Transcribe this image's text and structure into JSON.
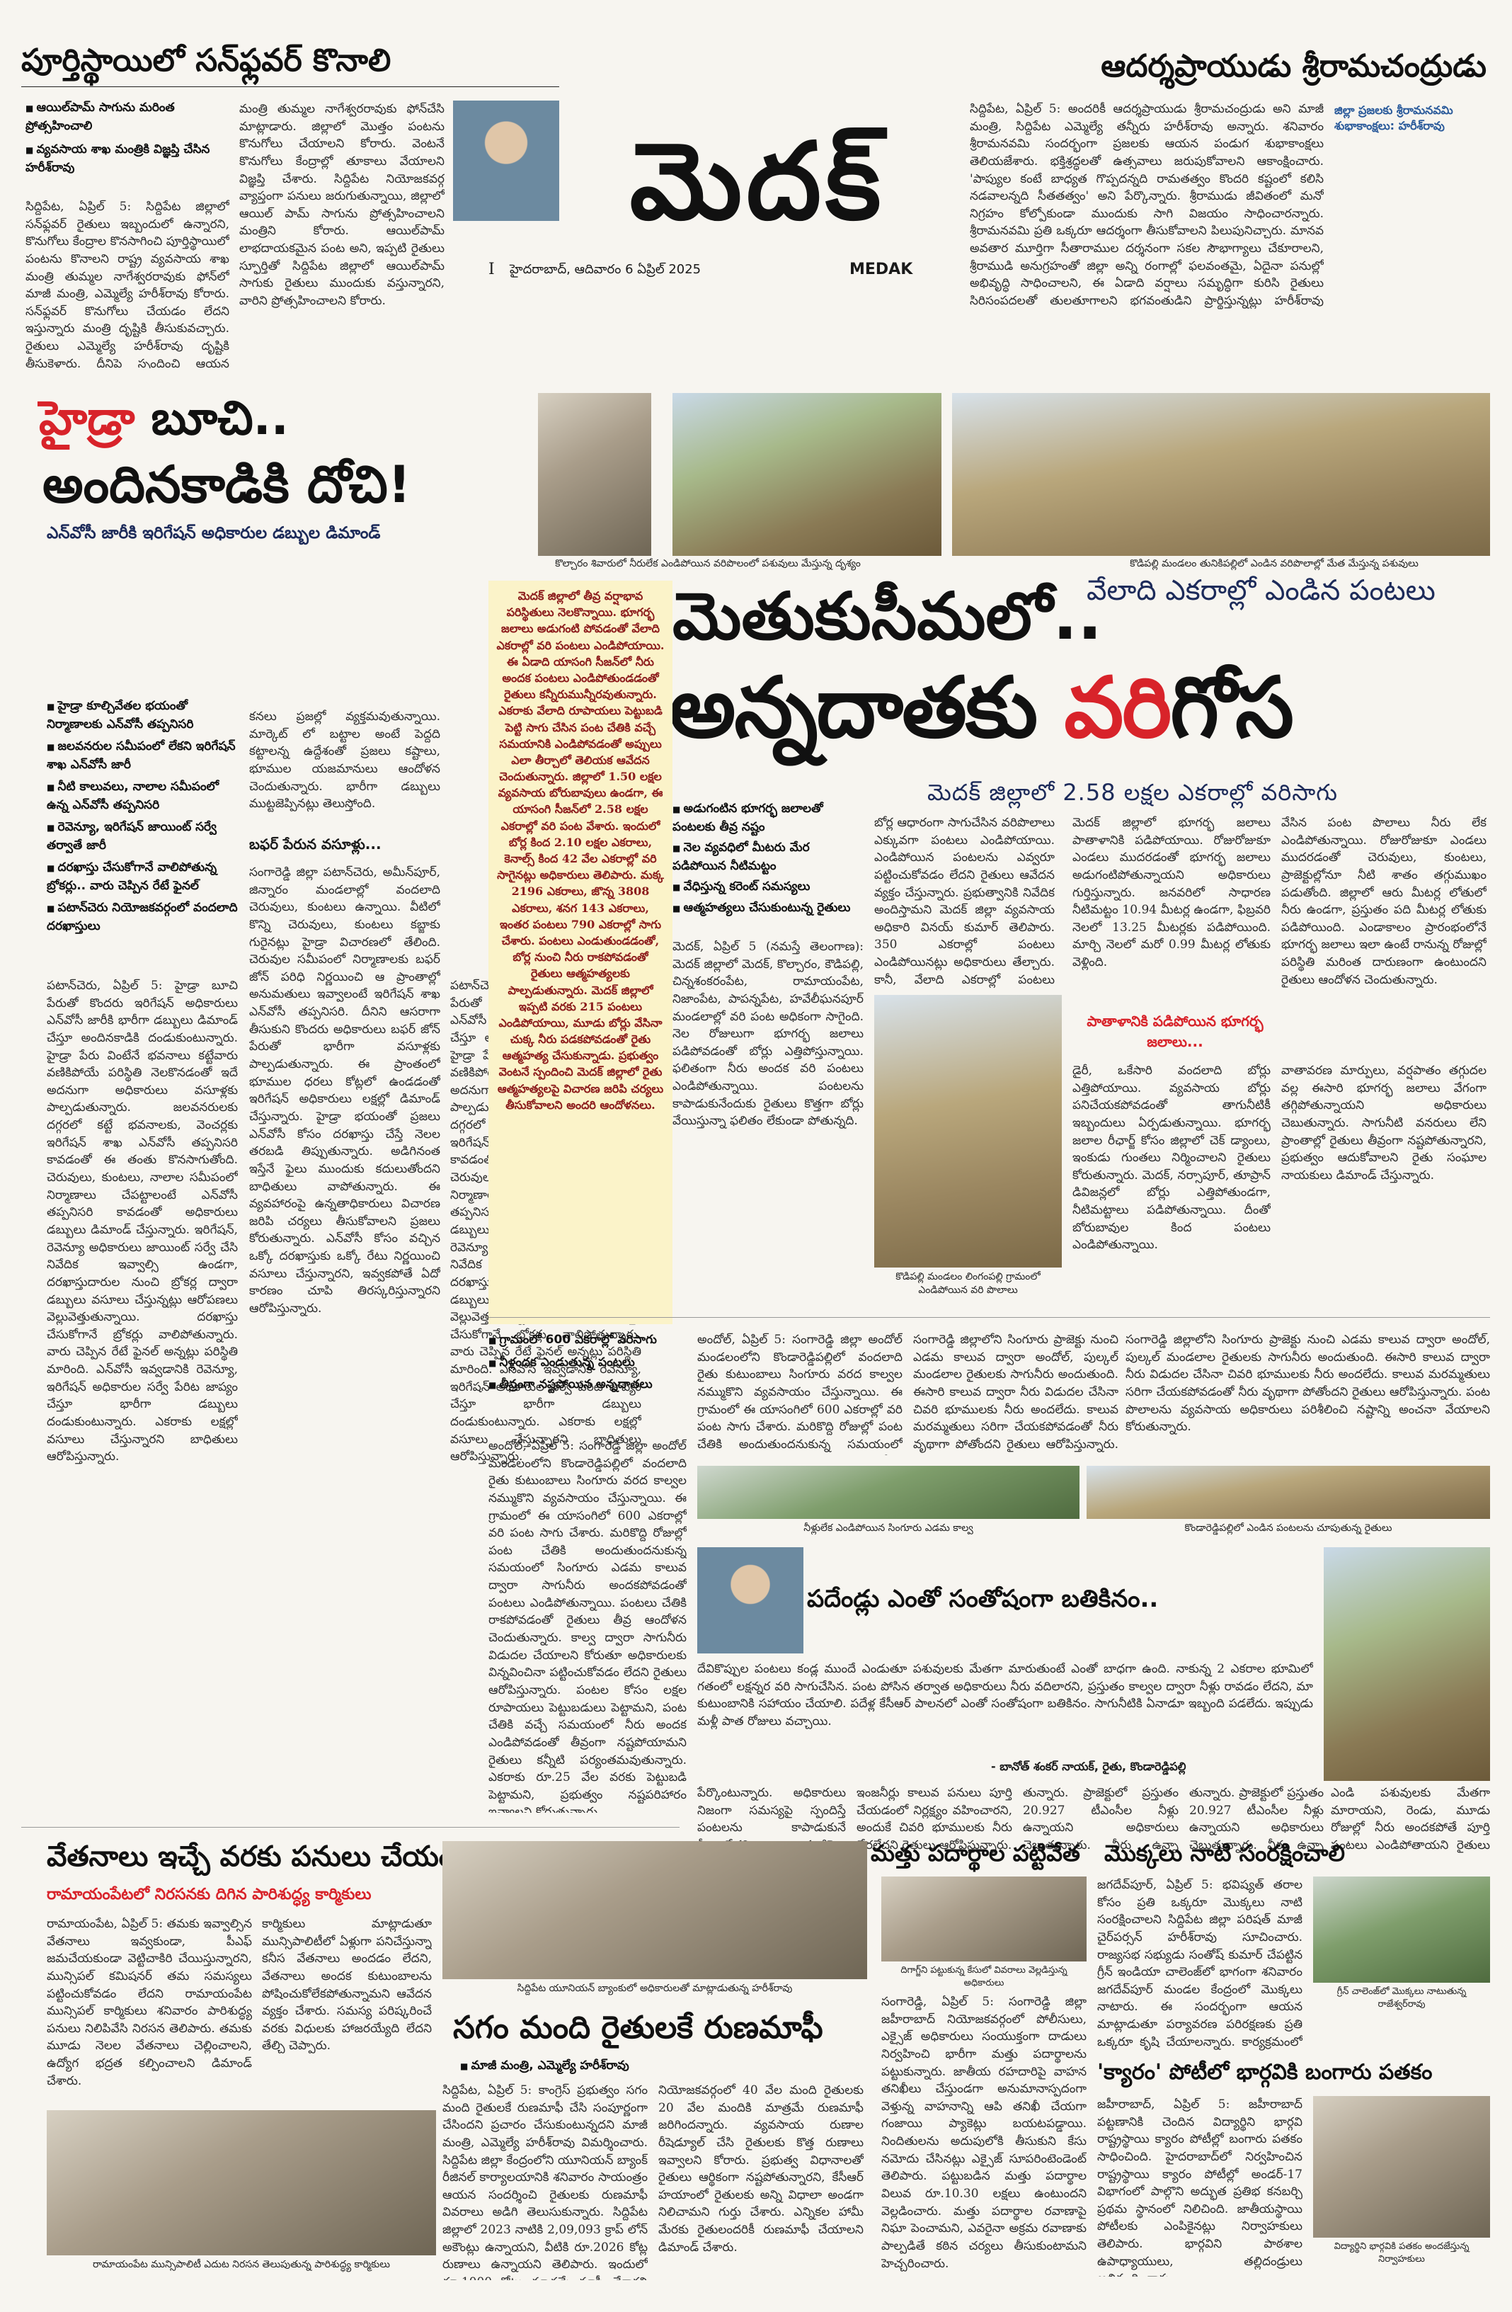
{
  "masthead": {
    "title": "మెదక్",
    "dateline": "హైదరాబాద్, ఆదివారం 6 ఏప్రిల్ 2025",
    "edition": "MEDAK",
    "page_marker": "I"
  },
  "story_sunflower": {
    "headline": "పూర్తిస్థాయిలో సన్‌ఫ్లవర్ కొనాలి",
    "bullets": [
      "ఆయిల్‌పామ్ సాగును మరింత ప్రోత్సహించాలి",
      "వ్యవసాయ శాఖ మంత్రికి విజ్ఞప్తి చేసిన హరీశ్‌రావు"
    ],
    "body_left": "సిద్దిపేట, ఏప్రిల్ 5: సిద్దిపేట జిల్లాలో సన్‌ఫ్లవర్ రైతులు ఇబ్బందులో ఉన్నారని, కొనుగోలు కేంద్రాల కొనసాగించి పూర్తిస్థాయిలో పంటను కొనాలని రాష్ట్ర వ్యవసాయ శాఖ మంత్రి తుమ్మల నాగేశ్వరరావుకు ఫోన్‌లో మాజీ మంత్రి, ఎమ్మెల్యే హరీశ్‌రావు కోరారు. సన్‌ఫ్లవర్ కొనుగోలు చేయడం లేదని ఇస్తున్నారు మంత్రి దృష్టికి తీసుకువచ్చారు. రైతులు ఎమ్మెల్యే హరీశ్‌రావు దృష్టికి తీసుకెళ్లారు. దీనిపై స్పందించి ఆయన వెంటనే",
    "body_right": "మంత్రి తుమ్మల నాగేశ్వరరావుకు ఫోన్‌చేసి మాట్లాడారు. జిల్లాలో మొత్తం పంటను కొనుగోలు చేయాలని కోరారు. వెంటనే కొనుగోలు కేంద్రాల్లో తూకాలు వేయాలని విజ్ఞప్తి చేశారు. సిద్దిపేట నియోజకవర్గ వ్యాప్తంగా పనులు జరుగుతున్నాయి, జిల్లాలో ఆయిల్ పామ్ సాగును ప్రోత్సహించాలని మంత్రిని కోరారు. ఆయిల్‌పామ్ లాభదాయకమైన పంట అని, ఇప్పటి రైతులు స్ఫూర్తితో సిద్దిపేట జిల్లాలో ఆయిల్‌పామ్ సాగుకు రైతులు ముందుకు వస్తున్నారని, వారిని ప్రోత్సహించాలని కోరారు."
  },
  "story_rama": {
    "headline": "ఆదర్శప్రాయుడు శ్రీరామచంద్రుడు",
    "caption": "జిల్లా ప్రజలకు శ్రీరామనవమి శుభాకాంక్షలు: హరీశ్‌రావు",
    "body": "సిద్దిపేట, ఏప్రిల్ 5: అందరికీ ఆదర్శప్రాయుడు శ్రీరామచంద్రుడు అని మాజీ మంత్రి, సిద్దిపేట ఎమ్మెల్యే తన్నీరు హరీశ్‌రావు అన్నారు. శనివారం శ్రీరామనవమి సందర్భంగా ప్రజలకు ఆయన పండుగ శుభాకాంక్షలు తెలియజేశారు. భక్తిశ్రద్ధలతో ఉత్సవాలు జరుపుకోవాలని ఆకాంక్షించారు. 'పాప్యుల కంటే బాధ్యత గొప్పదన్నది రామతత్వం కొందరి కష్టంలో కలిసి నడవాలన్నది సీతతత్వం' అని పేర్కొన్నారు. శ్రీరాముడు జీవితంలో మనో నిగ్రహం కోల్పోకుండా ముందుకు సాగి విజయం సాధించారన్నారు. శ్రీరామనవమి ప్రతి ఒక్కరూ ఆదర్శంగా తీసుకోవాలని పిలుపునిచ్చారు. మానవ అవతార మూర్తిగా సీతారాముల దర్శనంగా సకల సౌభాగ్యాలు చేకూరాలని, శ్రీరాముడి అనుగ్రహంతో జిల్లా అన్ని రంగాల్లో ఫలవంతమై, ఏదైనా పనుల్లో అభివృద్ధి సాధించాలని, ఈ ఏడాది వర్షాలు సమృద్ధిగా కురిసి రైతులు సిరిసంపదలతో తులతూగాలని భగవంతుడిని ప్రార్థిస్తున్నట్లు హరీశ్‌రావు ప్రకటనలో పేర్కొన్నారు."
  },
  "story_hydra": {
    "headline_red": "హైడ్రా",
    "headline_rest": "బూచి..",
    "headline_line2": "అందినకాడికి దోచి!",
    "subhead": "ఎన్‌వోసీ జారీకి ఇరిగేషన్ అధికారుల డబ్బుల డిమాండ్",
    "bullets": [
      "హైడ్రా కూల్చివేతల భయంతో నిర్మాణాలకు ఎన్‌వోసీ తప్పనిసరి",
      "జలవనరుల సమీపంలో లేకని ఇరిగేషన్ శాఖ ఎన్‌వోసీ జారీ",
      "నీటి కాలువలు, నాలాల సమీపంలో ఉన్న ఎన్‌వోసీ తప్పనిసరి",
      "రెవెన్యూ, ఇరిగేషన్ జాయింట్ సర్వే తర్వాతే జారీ",
      "దరఖాస్తు చేసుకోగానే వాలిపోతున్న బ్రోకర్లు.. వారు చెప్పిన రేటే ఫైనల్",
      "పటాన్‌చెరు నియోజకవర్గంలో వందలాది దరఖాస్తులు"
    ],
    "body_col1": "పటాన్‌చెరు, ఏప్రిల్ 5: హైడ్రా బూచి పేరుతో కొందరు ఇరిగేషన్ అధికారులు ఎన్‌వోసీ జారీకి భారీగా డబ్బులు డిమాండ్ చేస్తూ అందినకాడికి దండుకుంటున్నారు. హైడ్రా పేరు వింటేనే భవనాలు కట్టేవారు వణికిపోయే పరిస్థితి నెలకొనడంతో ఇదే అదనుగా అధికారులు వసూళ్లకు పాల్పడుతున్నారు. జలవనరులకు దగ్గరలో కట్టే భవనాలకు, వెంచర్లకు ఇరిగేషన్ శాఖ ఎన్‌వోసీ తప్పనిసరి కావడంతో ఈ తంతు కొనసాగుతోంది. చెరువులు, కుంటలు, నాలాల సమీపంలో నిర్మాణాలు చేపట్టాలంటే ఎన్‌వోసీ తప్పనిసరి కావడంతో అధికారులు డబ్బులు డిమాండ్ చేస్తున్నారు. ఇరిగేషన్, రెవెన్యూ అధికారులు జాయింట్ సర్వే చేసి నివేదిక ఇవ్వాల్సి ఉండగా, దరఖాస్తుదారుల నుంచి బ్రోకర్ల ద్వారా డబ్బులు వసూలు చేస్తున్నట్లు ఆరోపణలు వెల్లువెత్తుతున్నాయి. దరఖాస్తు చేసుకోగానే బ్రోకర్లు వాలిపోతున్నారు. వారు చెప్పిన రేటే ఫైనల్ అన్నట్లు పరిస్థితి మారింది. ఎన్‌వోసీ ఇవ్వడానికి రెవెన్యూ, ఇరిగేషన్ అధికారుల సర్వే పేరిట జాప్యం చేస్తూ భారీగా డబ్బులు దండుకుంటున్నారు. ఎకరాకు లక్షల్లో వసూలు చేస్తున్నారని బాధితులు ఆరోపిస్తున్నారు.",
    "body_col2": "కనలు ప్రజల్లో వ్యక్తమవుతున్నాయి. మార్కెట్ లో బట్టాల అంటే పెద్దది కట్టాలన్న ఉద్దేశంతో ప్రజలు కష్టాలు, భూముల యజమానులు ఆందోళన చెందుతున్నారు. భారీగా డబ్బులు ముట్టజెప్పినట్లు తెలుస్తోంది.",
    "sub_label": "బఫర్ పేరున వసూళ్లు...",
    "body_col2b": "సంగారెడ్డి జిల్లా పటాన్‌చెరు, అమీన్‌పూర్, జిన్నారం మండలాల్లో వందలాది చెరువులు, కుంటలు ఉన్నాయి. వీటిలో కొన్ని చెరువులు, కుంటలు కబ్జాకు గురైనట్లు హైడ్రా విచారణలో తేలింది. చెరువుల సమీపంలో నిర్మాణాలకు బఫర్ జోన్ పరిధి నిర్ణయించి ఆ ప్రాంతాల్లో అనుమతులు ఇవ్వాలంటే ఇరిగేషన్ శాఖ ఎన్‌వోసీ తప్పనిసరి. దీనిని ఆసరాగా తీసుకుని కొందరు అధికారులు బఫర్ జోన్ పేరుతో భారీగా వసూళ్లకు పాల్పడుతున్నారు. ఈ ప్రాంతంలో భూముల ధరలు కోట్లలో ఉండడంతో ఇరిగేషన్ అధికారులు లక్షల్లో డిమాండ్ చేస్తున్నారు. హైడ్రా భయంతో ప్రజలు ఎన్‌వోసీ కోసం దరఖాస్తు చేస్తే నెలల తరబడి తిప్పుతున్నారు. అడిగినంత ఇస్తేనే ఫైలు ముందుకు కదులుతోందని బాధితులు వాపోతున్నారు. ఈ వ్యవహారంపై ఉన్నతాధికారులు విచారణ జరిపి చర్యలు తీసుకోవాలని ప్రజలు కోరుతున్నారు. ఎన్‌వోసీ కోసం వచ్చిన ఒక్కో దరఖాస్తుకు ఒక్కో రేటు నిర్ణయించి వసూలు చేస్తున్నారని, ఇవ్వకపోతే ఏదో కారణం చూపి తిరస్కరిస్తున్నారని ఆరోపిస్తున్నారు."
  },
  "photo_captions_top": {
    "left": "కొల్చారం శివారులో నీరులేక ఎండిపోయిన వరిపొలంలో పశువులు మేస్తున్న దృశ్యం",
    "right": "కొడిపల్లి మండలం తునికిపల్లిలో ఎండిన వరిపొలాల్లో మేత మేస్తున్న పశువులు",
    "bottom_mid": "కొడిపల్లి మండలం లింగంపల్లి గ్రామంలో ఎండిపోయిన వరి పొలాలు"
  },
  "lead_story": {
    "kicker": "వేలాది ఎకరాల్లో ఎండిన పంటలు",
    "headline_line1": "మెతుకుసీమలో..",
    "headline_line2_a": "అన్నదాతకు ",
    "headline_line2_red": "వరి",
    "headline_line2_b": "గోస",
    "subhead": "మెదక్ జిల్లాలో 2.58 లక్షల ఎకరాల్లో వరిసాగు",
    "bullets": [
      "అడుగంటిన భూగర్భ జలాలతో పంటలకు తీవ్ర నష్టం",
      "నెల వ్యవధిలో మీటరు మేర పడిపోయిన నీటిమట్టం",
      "వేధిస్తున్న కరెంట్ సమస్యలు",
      "ఆత్మహత్యలు చేసుకుంటున్న రైతులు"
    ],
    "shaded_box": "మెదక్ జిల్లాలో తీవ్ర వర్షాభావ పరిస్థితులు నెలకొన్నాయి. భూగర్భ జలాలు అడుగంటి పోవడంతో వేలాది ఎకరాల్లో వరి పంటలు ఎండిపోయాయి. ఈ ఏడాది యాసంగి సీజన్‌లో నీరు అందక పంటలు ఎండిపోతుండడంతో రైతులు కన్నీరుమున్నీరవుతున్నారు. ఎకరాకు వేలాది రూపాయలు పెట్టుబడి పెట్టి సాగు చేసిన పంట చేతికి వచ్చే సమయానికి ఎండిపోవడంతో అప్పులు ఎలా తీర్చాలో తెలియక ఆవేదన చెందుతున్నారు. జిల్లాలో 1.50 లక్షల వ్యవసాయ బోరుబావులు ఉండగా, ఈ యాసంగి సీజన్‌లో 2.58 లక్షల ఎకరాల్లో వరి పంట వేశారు. ఇందులో బోర్ల కింద 2.10 లక్షల ఎకరాలు, కెనాల్స్ కింద 42 వేల ఎకరాల్లో వరి సాగైనట్లు అధికారులు తెలిపారు. మక్క 2196 ఎకరాలు, జొన్న 3808 ఎకరాలు, శనగ 143 ఎకరాలు, ఇంతర పంటలు 790 ఎకరాల్లో సాగు చేశారు. పంటలు ఎండుతుండడంతో, బోర్ల నుంచి నీరు రాకపోవడంతో రైతులు ఆత్మహత్యలకు పాల్పడుతున్నారు. మెదక్ జిల్లాలో ఇప్పటి వరకు 215 పంటలు ఎండిపోయాయి, మూడు బోర్లు వేసినా చుక్క నీరు పడకపోవడంతో రైతు ఆత్మహత్య చేసుకున్నాడు. ప్రభుత్వం వెంటనే స్పందించి మెదక్ జిల్లాలో రైతు ఆత్మహత్యలపై విచారణ జరిపి చర్యలు తీసుకోవాలని అందరి ఆందోళనలు.",
    "body_col_a": "బోర్ల ఆధారంగా సాగుచేసిన వరిపొలాలు ఎక్కువగా పంటలు ఎండిపోయాయి. ఎండిపోయిన పంటలను ఎవ్వరూ పట్టించుకోవడం లేదని రైతులు ఆవేదన వ్యక్తం చేస్తున్నారు. ప్రభుత్వానికి నివేదిక అందిస్తామని మెదక్ జిల్లా వ్యవసాయ అధికారి వినయ్ కుమార్ తెలిపారు. 350 ఎకరాల్లో పంటలు ఎండిపోయినట్లు అధికారులు తేల్చారు. కానీ, వేలాది ఎకరాల్లో పంటలు ఎండిపోయినా అధికారులు పట్టించుకోవడం లేదని రైతులు ఆవేదన చెందుతున్నారు.",
    "body_col_b": "మెదక్, ఏప్రిల్ 5 (నమస్తే తెలంగాణ): మెదక్ జిల్లాలో మెదక్, కొల్చారం, కౌడిపల్లి, చిన్నశంకరంపేట, రామాయంపేట, నిజాంపేట, పాపన్నపేట, హవేలీఘనపూర్ మండలాల్లో వరి పంట అధికంగా సాగైంది. నెల రోజులుగా భూగర్భ జలాలు పడిపోవడంతో బోర్లు ఎత్తిపోస్తున్నాయి. ఫలితంగా నీరు అందక వరి పంటలు ఎండిపోతున్నాయి. పంటలను కాపాడుకునేందుకు రైతులు కొత్తగా బోర్లు వేయిస్తున్నా ఫలితం లేకుండా పోతున్నది.",
    "body_col_c": "మెదక్ జిల్లాలో భూగర్భ జలాలు పాతాళానికి పడిపోయాయి. రోజురోజుకూ ఎండలు ముదరడంతో భూగర్భ జలాలు అడుగంటిపోతున్నాయని అధికారులు గుర్తిస్తున్నారు. జనవరిలో సాధారణ నీటిమట్టం 10.94 మీటర్ల ఉండగా, ఫిబ్రవరి నెలలో 13.25 మీటర్లకు పడిపోయింది. మార్చి నెలలో మరో 0.99 మీటర్ల లోతుకు వెళ్లింది.",
    "sub_label": "పాతాళానికి పడిపోయిన భూగర్భ జలాలు...",
    "body_col_d": "వేసిన పంట పొలాలు నీరు లేక ఎండిపోతున్నాయి. రోజురోజుకూ ఎండలు ముదరడంతో చెరువులు, కుంటలు, ప్రాజెక్టుల్లోనూ నీటి శాతం తగ్గుముఖం పడుతోంది. జిల్లాలో ఆరు మీటర్ల లోతులో నీరు ఉండగా, ప్రస్తుతం పది మీటర్ల లోతుకు పడిపోయింది. ఎండాకాలం ప్రారంభంలోనే భూగర్భ జలాలు ఇలా ఉంటే రానున్న రోజుల్లో పరిస్థితి మరింత దారుణంగా ఉంటుందని రైతులు ఆందోళన చెందుతున్నారు.",
    "body_col_e": "డైరీ, ఒకేసారి వందలాది బోర్లు ఎత్తిపోయాయి. వ్యవసాయ బోర్లు పనిచేయకపోవడంతో తాగునీటికీ ఇబ్బందులు ఏర్పడుతున్నాయి. భూగర్భ జలాల రీఛార్జ్ కోసం జిల్లాలో చెక్ డ్యాంలు, ఇంకుడు గుంతలు నిర్మించాలని రైతులు కోరుతున్నారు. మెదక్, నర్సాపూర్, తూప్రాన్ డివిజన్లలో బోర్లు ఎత్తిపోతుండగా, నీటిమట్టాలు పడిపోతున్నాయి. దీంతో బోరుబావుల కింద పంటలు ఎండిపోతున్నాయి.",
    "body_col_f": "వాతావరణ మార్పులు, వర్షపాతం తగ్గుదల వల్ల ఈసారి భూగర్భ జలాలు వేగంగా తగ్గిపోతున్నాయని అధికారులు చెబుతున్నారు. సాగునీటి వనరులు లేని ప్రాంతాల్లో రైతులు తీవ్రంగా నష్టపోతున్నారని, ప్రభుత్వం ఆదుకోవాలని రైతు సంఘాల నాయకులు డిమాండ్ చేస్తున్నారు."
  },
  "story_andole": {
    "bullets": [
      "గ్రామంలో 600 ఎకరాల్లో వరిసాగు",
      "నీళ్లందక ఎండుతున్న పంటలు",
      "తీవ్రంగా నష్టపోయిన అన్నదాతలు"
    ],
    "body": "అందోల్, ఏప్రిల్ 5: సంగారెడ్డి జిల్లా అందోల్ మండలంలోని కొండారెడ్డిపల్లిలో వందలాది రైతు కుటుంబాలు సింగూరు వరద కాల్వల నమ్ముకొని వ్యవసాయం చేస్తున్నాయి. ఈ గ్రామంలో ఈ యాసంగిలో 600 ఎకరాల్లో వరి పంట సాగు చేశారు. మరికొద్ది రోజుల్లో పంట చేతికి అందుతుందనుకున్న సమయంలో సింగూరు ఎడమ కాలువ ద్వారా సాగునీరు అందకపోవడంతో పంటలు ఎండిపోతున్నాయి. పంటలు చేతికి రాకపోవడంతో రైతులు తీవ్ర ఆందోళన చెందుతున్నారు. కాల్వ ద్వారా సాగునీరు విడుదల చేయాలని కోరుతూ అధికారులకు విన్నవించినా పట్టించుకోవడం లేదని రైతులు ఆరోపిస్తున్నారు. పంటల కోసం లక్షల రూపాయలు పెట్టుబడులు పెట్టామని, పంట చేతికి వచ్చే సమయంలో నీరు అందక ఎండిపోవడంతో తీవ్రంగా నష్టపోయామని రైతులు కన్నీటి పర్యంతమవుతున్నారు. ఎకరాకు రూ.25 వేల వరకు పెట్టుబడి పెట్టామని, ప్రభుత్వం నష్టపరిహారం ఇవ్వాలని కోరుతున్నారు.",
    "body2": "సంగారెడ్డి జిల్లాలోని సింగూరు ప్రాజెక్టు నుంచి ఎడమ కాలువ ద్వారా అందోల్, పుల్కల్ మండలాల రైతులకు సాగునీరు అందుతుంది. ఈసారి కాలువ ద్వారా నీరు విడుదల చేసినా చివరి భూములకు నీరు అందలేదు. కాలువ మరమ్మతులు సరిగా చేయకపోవడంతో నీరు వృథాగా పోతోందని రైతులు ఆరోపిస్తున్నారు. పంట పొలాలను వ్యవసాయ అధికారులు పరిశీలించి నష్టాన్ని అంచనా వేయాలని కోరుతున్నారు.",
    "photo_caption_left": "నీళ్లులేక ఎండిపోయిన సింగూరు ఎడమ కాల్వ",
    "photo_caption_right": "కొండారెడ్డిపల్లిలో ఎండిన పంటలను చూపుతున్న రైతులు"
  },
  "story_quote": {
    "headline": "పదేండ్లు ఎంతో సంతోషంగా బతికినం..",
    "quote": "దేవికొప్పుల పంటలు కండ్ల ముందే ఎండుతూ పశువులకు మేతగా మారుతుంటే ఎంతో బాధగా ఉంది. నాకున్న 2 ఎకరాల భూమిలో గతంలో లక్షన్నర వరి సాగుచేసిన. పంట పోసిన తర్వాత అధికారులు నీరు వదిలారని, ప్రస్తుతం కాల్వల ద్వారా నీళ్లు రావడం లేదని, మా కుటుంబానికి సహాయం చేయాలి. పదేళ్ల కేసీఆర్ పాలనలో ఎంతో సంతోషంగా బతికినం. సాగునీటికి ఏనాడూ ఇబ్బంది పడలేదు. ఇప్పుడు మళ్లీ పాత రోజులు వచ్చాయి.",
    "byline": "- బానోత్ శంకర్ నాయక్, రైతు, కొండారెడ్డిపల్లి",
    "body_after": "పేర్కొంటున్నారు. అధికారులు నిజంగా సమస్యపై స్పందిస్తే పంటలను కాపాడుకునే వీలుండేదని, ఇప్పటికైనా నష్టపోయిన రైతులను ఆదుకోవాలని కోరుతున్నారు.",
    "body_after2": "ఇంజనీర్లు కాలువ పనులు పూర్తి చేయడంలో నిర్లక్ష్యం వహించారని, అందుకే చివరి భూములకు నీరు చేరలేదని రైతులు ఆరోపిస్తున్నారు.",
    "body_after3": "తున్నారు. ప్రాజెక్టులో ప్రస్తుతం 20.927 టీఎంసీల నీళ్లు ఉన్నాయని అధికారులు చెబుతున్నారు. నీరు ఉన్నా కాలువల ద్వారా చివరి భూములకు చేరడం లేదు.",
    "body_after4": "ఎండి పశువులకు మేతగా మారాయని, రెండు, మూడు రోజుల్లో నీరు అందకపోతే పూర్తి పంటలు ఎండిపోతాయని రైతులు ఆవేదన వ్యక్తం చేస్తున్నారు."
  },
  "story_wages": {
    "headline": "వేతనాలు ఇచ్చే వరకు పనులు చేయం",
    "subhead": "రామాయంపేటలో నిరసనకు దిగిన పారిశుద్ధ్య కార్మికులు",
    "body": "రామాయంపేట, ఏప్రిల్ 5: తమకు ఇవ్వాల్సిన వేతనాలు ఇవ్వకుండా, పీఎఫ్ జమచేయకుండా వెట్టిచాకిరి చేయిస్తున్నారని, మున్సిపల్ కమిషనర్ తమ సమస్యలు పట్టించుకోవడం లేదని రామాయంపేట మున్సిపల్ కార్మికులు శనివారం పారిశుద్ధ్య పనులు నిలిపివేసి నిరసన తెలిపారు. తమకు మూడు నెలల వేతనాలు చెల్లించాలని, ఉద్యోగ భద్రత కల్పించాలని డిమాండ్ చేశారు.",
    "body2": "కార్మికులు మాట్లాడుతూ మున్సిపాలిటీలో ఏళ్లుగా పనిచేస్తున్నా కనీస వేతనాలు అందడం లేదని, వేతనాలు అందక కుటుంబాలను పోషించుకోలేకపోతున్నామని ఆవేదన వ్యక్తం చేశారు. సమస్య పరిష్కరించే వరకు విధులకు హాజరయ్యేది లేదని తేల్చి చెప్పారు.",
    "photo_caption": "రామాయంపేట మున్సిపాలిటీ ఎదుట నిరసన తెలుపుతున్న పారిశుద్ధ్య కార్మికులు"
  },
  "story_loan": {
    "photo_caption": "సిద్దిపేట యూనియన్ బ్యాంకులో అధికారులతో మాట్లాడుతున్న హరీశ్‌రావు",
    "headline": "సగం మంది రైతులకే రుణమాఫీ",
    "bullet": "మాజీ మంత్రి, ఎమ్మెల్యే హరీశ్‌రావు",
    "body": "సిద్దిపేట, ఏప్రిల్ 5: కాంగ్రెస్ ప్రభుత్వం సగం మంది రైతులకే రుణమాఫీ చేసి సంపూర్ణంగా చేసిందని ప్రచారం చేసుకుంటున్నదని మాజీ మంత్రి, ఎమ్మెల్యే హరీశ్‌రావు విమర్శించారు. సిద్దిపేట జిల్లా కేంద్రంలోని యూనియన్ బ్యాంక్ రీజినల్ కార్యాలయానికి శనివారం సాయంత్రం ఆయన సందర్శించి రైతులకు రుణమాఫీ వివరాలు అడిగి తెలుసుకున్నారు. సిద్దిపేట జిల్లాలో 2023 నాటికి 2,09,093 క్రాప్ లోన్ అకౌంట్లు ఉన్నాయని, వీటికి రూ.2026 కోట్ల రుణాలు ఉన్నాయని తెలిపారు. ఇందులో రూ.1000 కోట్లు మాత్రమే మాఫీ చేశారని ఆరోపించారు.",
    "body2": "నియోజకవర్గంలో 40 వేల మంది రైతులకు 20 వేల మందికి మాత్రమే రుణమాఫీ జరిగిందన్నారు. వ్యవసాయ రుణాల రీషెడ్యూల్ చేసి రైతులకు కొత్త రుణాలు ఇవ్వాలని కోరారు. ప్రభుత్వ విధానాలతో రైతులు ఆర్థికంగా నష్టపోతున్నారని, కేసీఆర్ హయాంలో రైతులకు అన్ని విధాలా అండగా నిలిచామని గుర్తు చేశారు. ఎన్నికల హామీ మేరకు రైతులందరికీ రుణమాఫీ చేయాలని డిమాండ్ చేశారు.",
    "body3": "మాట్లాడారు. గతంలో ఇచ్చిన హామీలు నెరవేర్చడంలో ప్రభుత్వం విఫలమైందని విమర్శించారు. రైతుల తరఫున పోరాటం కొనసాగిస్తామని హెచ్చరించారు. ఆయన వెంట బీఆర్ఎస్ నాయకులు, కార్యకర్తలు, రైతులు ఉన్నారు."
  },
  "story_drugs": {
    "headline": "మత్తు పదార్థాల పట్టివేత",
    "photo_caption": "దిగాగ్జ్‌ని పట్టుకున్న కేసులో వివరాలు వెల్లడిస్తున్న అధికారులు",
    "body": "సంగారెడ్డి, ఏప్రిల్ 5: సంగారెడ్డి జిల్లా జహీరాబాద్ నియోజకవర్గంలో పోలీసులు, ఎక్సైజ్ అధికారులు సంయుక్తంగా దాడులు నిర్వహించి భారీగా మత్తు పదార్థాలను పట్టుకున్నారు. జాతీయ రహదారిపై వాహన తనిఖీలు చేస్తుండగా అనుమానాస్పదంగా వెళ్తున్న వాహనాన్ని ఆపి తనిఖీ చేయగా గంజాయి ప్యాకెట్లు బయటపడ్డాయి. నిందితులను అదుపులోకి తీసుకుని కేసు నమోదు చేసినట్లు ఎక్సైజ్ సూపరింటెండెంట్ తెలిపారు. పట్టుబడిన మత్తు పదార్థాల విలువ రూ.10.30 లక్షలు ఉంటుందని వెల్లడించారు. మత్తు పదార్థాల రవాణాపై నిఘా పెంచామని, ఎవరైనా అక్రమ రవాణాకు పాల్పడితే కఠిన చర్యలు తీసుకుంటామని హెచ్చరించారు."
  },
  "story_plants": {
    "headline": "మొక్కలు నాటి సంరక్షించాలి",
    "photo_caption": "గ్రీన్ చాలెంజ్‌లో మొక్కలు నాటుతున్న రాజేశ్వర్‌రావు",
    "body": "జగదేవ్‌పూర్, ఏప్రిల్ 5: భవిష్యత్ తరాల కోసం ప్రతి ఒక్కరూ మొక్కలు నాటి సంరక్షించాలని సిద్దిపేట జిల్లా పరిషత్ మాజీ చైర్‌పర్సన్ హరీశ్‌రావు సూచించారు. రాజ్యసభ సభ్యుడు సంతోష్ కుమార్ చేపట్టిన గ్రీన్ ఇండియా చాలెంజ్‌లో భాగంగా శనివారం జగదేవ్‌పూర్ మండల కేంద్రంలో మొక్కలు నాటారు. ఈ సందర్భంగా ఆయన మాట్లాడుతూ పర్యావరణ పరిరక్షణకు ప్రతి ఒక్కరూ కృషి చేయాలన్నారు. కార్యక్రమంలో నాయకులు, కార్యకర్తలు పాల్గొన్నారు."
  },
  "story_carrom": {
    "headline": "'క్యారం' పోటీలో భార్గవికి బంగారు పతకం",
    "photo_caption": "విద్యార్థిని భార్గవికి పతకం అందజేస్తున్న నిర్వాహకులు",
    "body": "జహీరాబాద్, ఏప్రిల్ 5: జహీరాబాద్ పట్టణానికి చెందిన విద్యార్థిని భార్గవి రాష్ట్రస్థాయి క్యారం పోటీల్లో బంగారు పతకం సాధించింది. హైదరాబాద్‌లో నిర్వహించిన రాష్ట్రస్థాయి క్యారం పోటీల్లో అండర్-17 విభాగంలో పాల్గొని అద్భుత ప్రతిభ కనబర్చి ప్రథమ స్థానంలో నిలిచింది. జాతీయస్థాయి పోటీలకు ఎంపికైనట్లు నిర్వాహకులు తెలిపారు. భార్గవిని పాఠశాల ఉపాధ్యాయులు, తల్లిదండ్రులు అభినందించారు."
  },
  "colors": {
    "accent_red": "#d8232a",
    "navy": "#1d2b5a",
    "shade": "#fbf3c9",
    "rule": "#222222"
  }
}
